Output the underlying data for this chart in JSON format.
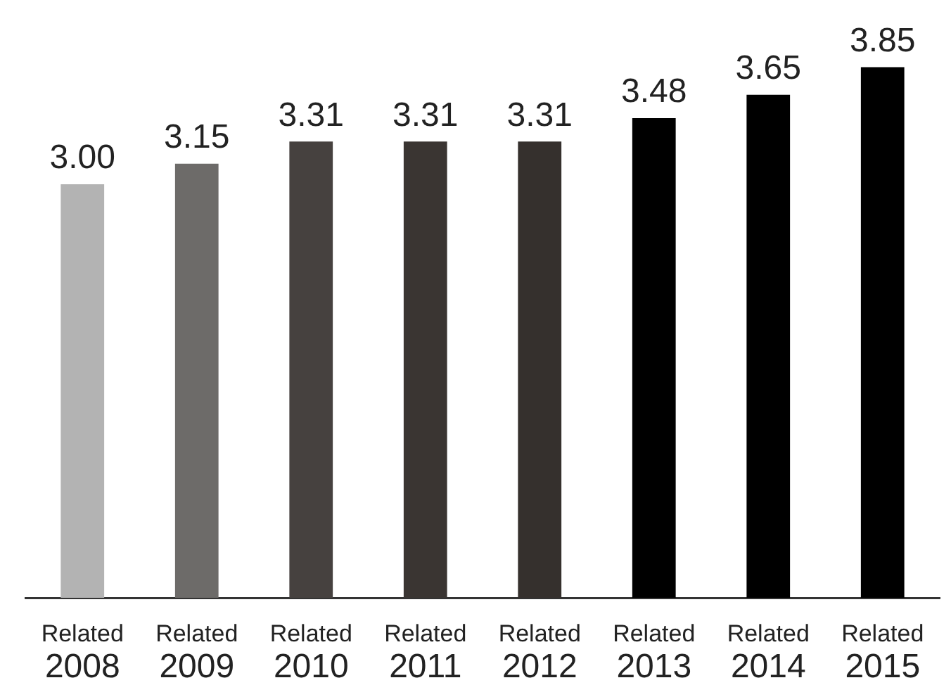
{
  "chart_data": {
    "type": "bar",
    "categories": [
      "Related 2008",
      "Related 2009",
      "Related 2010",
      "Related 2011",
      "Related 2012",
      "Related 2013",
      "Related 2014",
      "Related 2015"
    ],
    "values": [
      3.0,
      3.15,
      3.31,
      3.31,
      3.31,
      3.48,
      3.65,
      3.85
    ],
    "colors": [
      "#b3b3b3",
      "#6d6b69",
      "#46413f",
      "#3a3532",
      "#35302d",
      "#000000",
      "#000000",
      "#000000"
    ],
    "value_labels": [
      "3.00",
      "3.15",
      "3.31",
      "3.31",
      "3.31",
      "3.48",
      "3.65",
      "3.85"
    ],
    "grid": false,
    "legend": false
  }
}
